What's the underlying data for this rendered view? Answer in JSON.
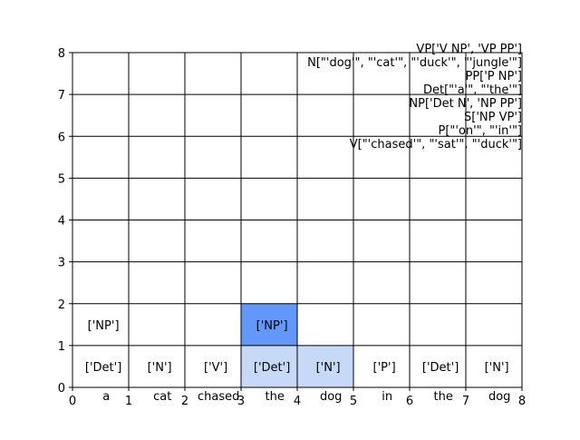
{
  "chart_data": {
    "type": "table",
    "title": "",
    "xlabel": "",
    "ylabel": "",
    "xlim": [
      0,
      8
    ],
    "ylim": [
      0,
      8
    ],
    "x_ticks": [
      "0",
      "1",
      "2",
      "3",
      "4",
      "5",
      "6",
      "7",
      "8"
    ],
    "y_ticks": [
      "0",
      "1",
      "2",
      "3",
      "4",
      "5",
      "6",
      "7",
      "8"
    ],
    "grid": true,
    "words": [
      "a",
      "cat",
      "chased",
      "the",
      "dog",
      "in",
      "the",
      "dog"
    ],
    "cells": [
      {
        "col": 0,
        "row": 0,
        "label": "['Det']"
      },
      {
        "col": 1,
        "row": 0,
        "label": "['N']"
      },
      {
        "col": 2,
        "row": 0,
        "label": "['V']"
      },
      {
        "col": 3,
        "row": 0,
        "label": "['Det']",
        "highlight": "light"
      },
      {
        "col": 4,
        "row": 0,
        "label": "['N']",
        "highlight": "light"
      },
      {
        "col": 5,
        "row": 0,
        "label": "['P']"
      },
      {
        "col": 6,
        "row": 0,
        "label": "['Det']"
      },
      {
        "col": 7,
        "row": 0,
        "label": "['N']"
      },
      {
        "col": 0,
        "row": 1,
        "label": "['NP']"
      },
      {
        "col": 3,
        "row": 1,
        "label": "['NP']",
        "highlight": "dark"
      }
    ],
    "highlight_colors": {
      "light": "#c6d9f7",
      "dark": "#6198f9"
    },
    "grammar_rules": [
      "VP['V NP', 'VP PP']",
      "N[\"'dog'\", \"'cat'\", \"'duck'\", \"'jungle'\"]",
      "PP['P NP']",
      "Det[\"'a'\", \"'the'\"]",
      "NP['Det N', 'NP PP']",
      "S['NP VP']",
      "P[\"'on'\", \"'in'\"]",
      "V[\"'chased'\", \"'sat'\", \"'duck'\"]"
    ]
  }
}
